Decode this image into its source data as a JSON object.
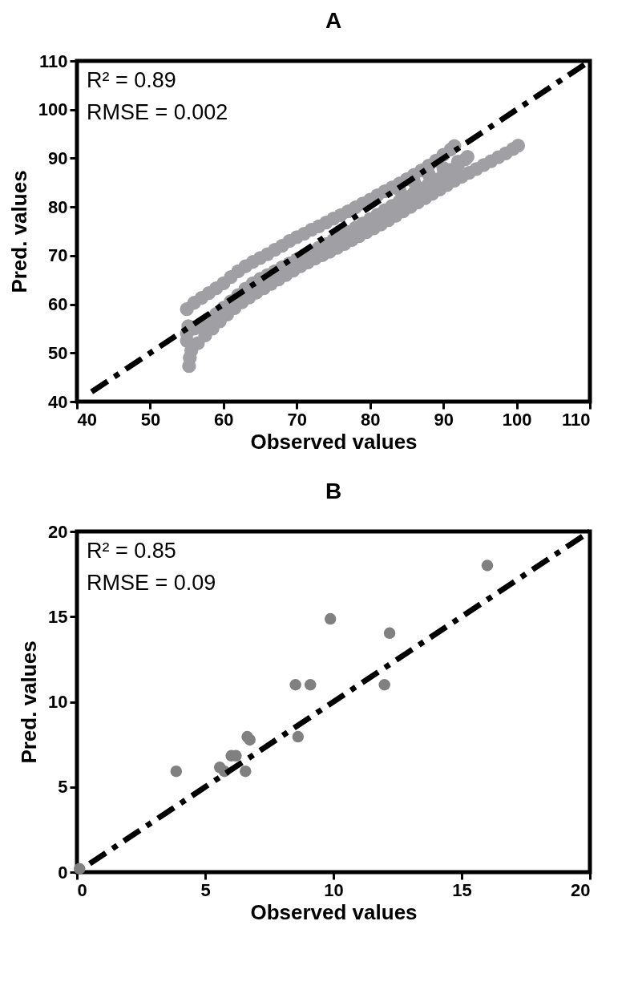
{
  "chart_data": [
    {
      "type": "scatter",
      "title": "A",
      "xlabel": "Observed values",
      "ylabel": "Pred. values",
      "annotations": [
        "R² = 0.89",
        "RMSE = 0.002"
      ],
      "xlim": [
        40,
        110
      ],
      "xticks": [
        40,
        50,
        60,
        70,
        80,
        90,
        100,
        110
      ],
      "ylim": [
        40,
        110
      ],
      "yticks": [
        40,
        50,
        60,
        70,
        80,
        90,
        100,
        110
      ],
      "grid": false,
      "series": [
        {
          "marker": "circle",
          "color": "#a0a0a4",
          "x": [
            55,
            56,
            57,
            58,
            59,
            60,
            61,
            62,
            63,
            64,
            65,
            66,
            67,
            68,
            69,
            70,
            71,
            72,
            73,
            74,
            75,
            76,
            77,
            78,
            79,
            80,
            81,
            82,
            83,
            84,
            85,
            86,
            87,
            88,
            89,
            90,
            91,
            91.5,
            55.3,
            55.4,
            55.6,
            56.5,
            57.5,
            58.5,
            59.5,
            60.5,
            61.5,
            62.5,
            63.5,
            64.5,
            65.5,
            66.5,
            67.5,
            68.5,
            69.5,
            70.5,
            71.5,
            72.5,
            73.5,
            74.5,
            75.5,
            76.5,
            77.5,
            78.5,
            79.5,
            80.5,
            81.5,
            82.5,
            83.5,
            84.5,
            85.5,
            86.5,
            87.5,
            88.5,
            89.5,
            90.5,
            91.5,
            92.5,
            93.5,
            94.5,
            95.5,
            96.5,
            97.5,
            98.5,
            99.5,
            100.2,
            55,
            55,
            55.2,
            56,
            57,
            58,
            59,
            60,
            61,
            62,
            63,
            64,
            65,
            66,
            67,
            68,
            69,
            70,
            71,
            72,
            73,
            74,
            75,
            76,
            77,
            78,
            79,
            80,
            81,
            82,
            83,
            84,
            85,
            86,
            87,
            88,
            89,
            90,
            91,
            92,
            93,
            93.3,
            92,
            90,
            88,
            86,
            84
          ],
          "values": [
            59,
            60.3,
            61.3,
            62.3,
            63.3,
            64.3,
            65.6,
            66.8,
            67.8,
            68.7,
            69.5,
            70.3,
            71.2,
            72,
            73,
            73.8,
            74.5,
            75.3,
            76,
            76.8,
            77.6,
            78.3,
            79.1,
            79.9,
            80.7,
            81.5,
            82.4,
            83.2,
            84,
            84.8,
            85.7,
            86.6,
            87.5,
            88.5,
            89.5,
            90.7,
            91.8,
            92.5,
            47.3,
            49,
            50.5,
            52,
            53.6,
            55,
            56.5,
            57.9,
            59.2,
            60.4,
            61.4,
            62.4,
            63.3,
            64.2,
            65.1,
            66,
            66.9,
            67.8,
            68.6,
            69.4,
            70.1,
            70.8,
            71.6,
            72.4,
            73.2,
            74,
            74.8,
            75.6,
            76.4,
            77.3,
            78.2,
            79.1,
            80,
            80.9,
            81.8,
            82.7,
            83.6,
            84.5,
            85.4,
            86.2,
            87,
            87.8,
            88.6,
            89.4,
            90.2,
            91,
            91.9,
            92.6,
            52.5,
            54,
            55.5,
            55,
            56,
            57,
            58,
            59.3,
            60.6,
            61.9,
            63.2,
            64.3,
            65.2,
            66,
            66.8,
            67.6,
            68.4,
            69.2,
            70,
            70.8,
            71.6,
            72.4,
            73.2,
            74,
            74.8,
            75.7,
            76.6,
            77.5,
            78.4,
            79.3,
            80.2,
            81.1,
            82,
            82.9,
            83.8,
            84.7,
            85.6,
            86.6,
            87.6,
            88.6,
            89.8,
            90.3,
            89.3,
            88,
            86.7,
            85.2,
            83.5
          ]
        },
        {
          "type": "line",
          "color": "#000000",
          "line_style": "dashed",
          "x": [
            42,
            110
          ],
          "values": [
            42,
            110
          ]
        }
      ]
    },
    {
      "type": "scatter",
      "title": "B",
      "xlabel": "Observed  values",
      "ylabel": "Pred. values",
      "annotations": [
        "R² = 0.85",
        "RMSE = 0.09"
      ],
      "xlim": [
        0,
        20
      ],
      "xticks": [
        0,
        5,
        10,
        15,
        20
      ],
      "ylim": [
        0,
        20
      ],
      "yticks": [
        0,
        5,
        10,
        15,
        20
      ],
      "grid": false,
      "series": [
        {
          "marker": "circle",
          "color": "#808080",
          "x": [
            16.0,
            9.88,
            12.19,
            8.52,
            9.1,
            11.99,
            8.62,
            6.64,
            6.74,
            6.02,
            6.2,
            5.57,
            5.75,
            6.57,
            3.87,
            0.1
          ],
          "values": [
            18.0,
            14.87,
            14.03,
            11.0,
            11.0,
            11.0,
            7.95,
            7.95,
            7.77,
            6.83,
            6.83,
            6.15,
            5.92,
            5.92,
            5.92,
            0.2
          ]
        },
        {
          "type": "line",
          "color": "#000000",
          "line_style": "dashed",
          "x": [
            0.5,
            20
          ],
          "values": [
            0.5,
            20
          ]
        }
      ]
    }
  ]
}
